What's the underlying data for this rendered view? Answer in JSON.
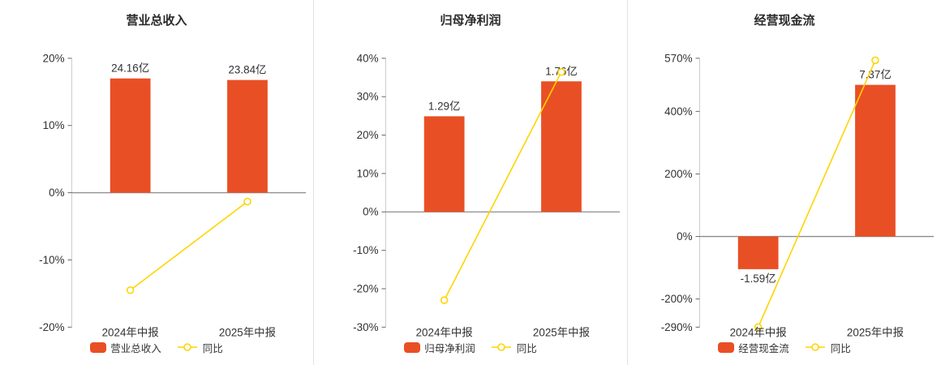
{
  "colors": {
    "bar": "#e94f25",
    "line": "#ffd400",
    "marker_fill": "#ffffff",
    "axis": "#cccccc",
    "tick": "#666666",
    "zero_line": "#8c8c8c",
    "text": "#333333",
    "separator": "#e3e3e3"
  },
  "chart_data": [
    {
      "type": "bar",
      "title": "营业总收入",
      "categories": [
        "2024年中报",
        "2025年中报"
      ],
      "series": [
        {
          "name": "营业总收入",
          "type": "bar",
          "values": [
            24.16,
            23.84
          ],
          "unit": "亿",
          "data_labels": [
            "24.16亿",
            "23.84亿"
          ],
          "bar_display_pct": [
            17.0,
            16.77
          ]
        },
        {
          "name": "同比",
          "type": "line",
          "values_pct": [
            -14.5,
            -1.32
          ]
        }
      ],
      "ylim": [
        -20,
        20
      ],
      "yticks": [
        20,
        10,
        0,
        -10,
        -20
      ],
      "ytick_suffix": "%",
      "legend_position": "bottom",
      "grid": false
    },
    {
      "type": "bar",
      "title": "归母净利润",
      "categories": [
        "2024年中报",
        "2025年中报"
      ],
      "series": [
        {
          "name": "归母净利润",
          "type": "bar",
          "values": [
            1.29,
            1.76
          ],
          "unit": "亿",
          "data_labels": [
            "1.29亿",
            "1.76亿"
          ],
          "bar_display_pct": [
            24.9,
            34.0
          ]
        },
        {
          "name": "同比",
          "type": "line",
          "values_pct": [
            -23.0,
            36.43
          ]
        }
      ],
      "ylim": [
        -30,
        40
      ],
      "yticks": [
        40,
        30,
        20,
        10,
        0,
        -10,
        -20,
        -30
      ],
      "ytick_suffix": "%",
      "legend_position": "bottom",
      "grid": false
    },
    {
      "type": "bar",
      "title": "经营现金流",
      "categories": [
        "2024年中报",
        "2025年中报"
      ],
      "series": [
        {
          "name": "经营现金流",
          "type": "bar",
          "values": [
            -1.59,
            7.37
          ],
          "unit": "亿",
          "data_labels": [
            "-1.59亿",
            "7.37亿"
          ],
          "bar_display_pct": [
            -104.6,
            485.0
          ]
        },
        {
          "name": "同比",
          "type": "line",
          "values_pct": [
            -290.0,
            563.5
          ]
        }
      ],
      "ylim": [
        -290,
        570
      ],
      "yticks": [
        570,
        400,
        200,
        0,
        -200,
        -290
      ],
      "ytick_suffix": "%",
      "legend_position": "bottom",
      "grid": false
    }
  ]
}
